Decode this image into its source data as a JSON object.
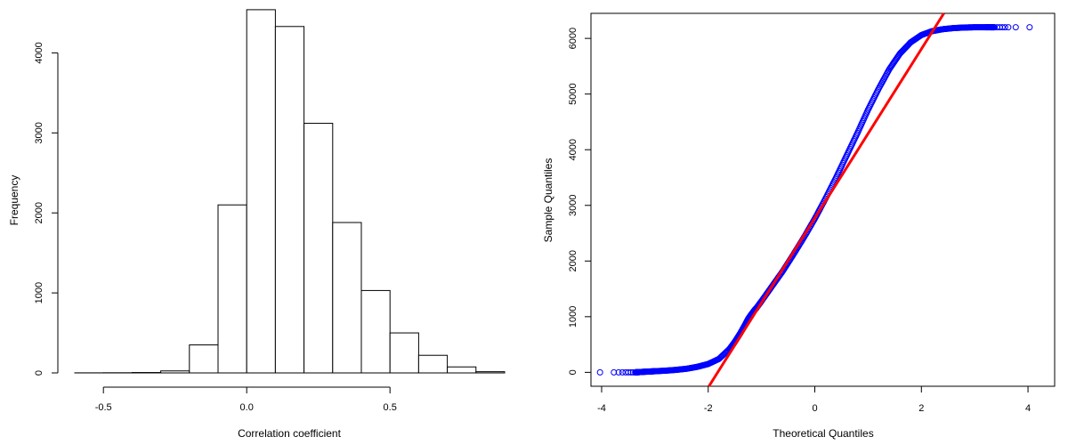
{
  "chart_data": [
    {
      "type": "bar",
      "subtype": "histogram",
      "xlabel": "Correlation coefficient",
      "ylabel": "Frequency",
      "xlim": [
        -0.6,
        0.9
      ],
      "ylim": [
        0,
        4550
      ],
      "x_ticks": [
        -0.5,
        0.0,
        0.5
      ],
      "x_tick_labels": [
        "-0.5",
        "0.0",
        "0.5"
      ],
      "y_ticks": [
        0,
        1000,
        2000,
        3000,
        4000
      ],
      "y_tick_labels": [
        "0",
        "1000",
        "2000",
        "3000",
        "4000"
      ],
      "bin_edges": [
        -0.6,
        -0.5,
        -0.4,
        -0.3,
        -0.2,
        -0.1,
        0.0,
        0.1,
        0.2,
        0.3,
        0.4,
        0.5,
        0.6,
        0.7,
        0.8,
        0.9
      ],
      "values": [
        1,
        2,
        5,
        25,
        350,
        2100,
        4540,
        4330,
        3120,
        1880,
        1030,
        500,
        220,
        75,
        15
      ],
      "colors": {
        "bar_fill": "#ffffff",
        "bar_stroke": "#000000"
      }
    },
    {
      "type": "scatter",
      "subtype": "qq-plot",
      "xlabel": "Theoretical Quantiles",
      "ylabel": "Sample Quantiles",
      "xlim": [
        -4.2,
        4.5
      ],
      "ylim": [
        -250,
        6450
      ],
      "x_ticks": [
        -4,
        -2,
        0,
        2,
        4
      ],
      "x_tick_labels": [
        "-4",
        "-2",
        "0",
        "2",
        "4"
      ],
      "y_ticks": [
        0,
        1000,
        2000,
        3000,
        4000,
        5000,
        6000
      ],
      "y_tick_labels": [
        "0",
        "1000",
        "2000",
        "3000",
        "4000",
        "5000",
        "6000"
      ],
      "points": {
        "x": [
          -4.03,
          -3.77,
          -3.68,
          -3.61,
          -3.55,
          -3.5,
          -3.45,
          -3.41,
          -3.37,
          -3.33,
          -3.28,
          -3.2,
          -3.1,
          -3.0,
          -2.8,
          -2.6,
          -2.4,
          -2.2,
          -2.0,
          -1.8,
          -1.6,
          -1.5,
          -1.4,
          -1.3,
          -1.25,
          -1.2,
          -1.16,
          -1.13,
          -1.1,
          -1.0,
          -0.8,
          -0.6,
          -0.4,
          -0.2,
          0.0,
          0.2,
          0.4,
          0.6,
          0.8,
          1.0,
          1.2,
          1.4,
          1.6,
          1.8,
          2.0,
          2.2,
          2.4,
          2.6,
          2.8,
          3.0,
          3.2,
          3.3,
          3.37,
          3.42,
          3.47,
          3.52,
          3.57,
          3.63,
          3.77,
          4.03
        ],
        "y": [
          0,
          0,
          0,
          0,
          0,
          0,
          0,
          0,
          0,
          2,
          5,
          10,
          15,
          20,
          30,
          45,
          65,
          100,
          150,
          240,
          420,
          550,
          700,
          870,
          960,
          1030,
          1080,
          1120,
          1150,
          1280,
          1550,
          1820,
          2120,
          2430,
          2760,
          3120,
          3500,
          3900,
          4300,
          4720,
          5100,
          5450,
          5730,
          5930,
          6060,
          6130,
          6165,
          6185,
          6195,
          6200,
          6200,
          6200,
          6200,
          6200,
          6200,
          6200,
          6200,
          6200,
          6200,
          6200
        ],
        "color": "#0000ff"
      },
      "reference_line": {
        "slope": 1520,
        "intercept": 2770,
        "color": "#ff0000"
      }
    }
  ]
}
